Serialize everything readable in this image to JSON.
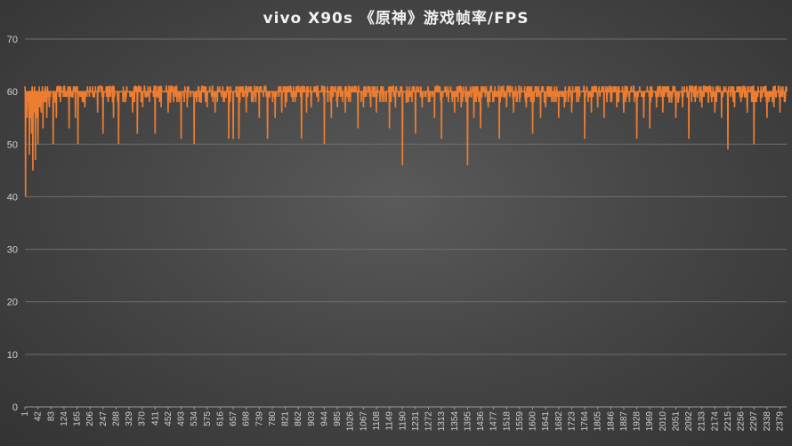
{
  "chart_data": {
    "type": "line",
    "title": "vivo X90s 《原神》游戏帧率/FPS",
    "xlabel": "",
    "ylabel": "",
    "ylim": [
      0,
      70
    ],
    "yticks": [
      0,
      10,
      20,
      30,
      40,
      50,
      60,
      70
    ],
    "x_range": [
      1,
      2400
    ],
    "xtick_labels": [
      "1",
      "42",
      "83",
      "124",
      "165",
      "206",
      "247",
      "288",
      "329",
      "370",
      "411",
      "452",
      "493",
      "534",
      "575",
      "616",
      "657",
      "698",
      "739",
      "780",
      "821",
      "862",
      "903",
      "944",
      "985",
      "1026",
      "1067",
      "1108",
      "1149",
      "1190",
      "1231",
      "1272",
      "1313",
      "1354",
      "1395",
      "1436",
      "1477",
      "1518",
      "1559",
      "1600",
      "1641",
      "1682",
      "1723",
      "1764",
      "1805",
      "1846",
      "1887",
      "1928",
      "1969",
      "2010",
      "2051",
      "2092",
      "2133",
      "2174",
      "2215",
      "2256",
      "2297",
      "2338",
      "2379"
    ],
    "grid": true,
    "line_color": "#ED7D31",
    "baseline_fps": 60,
    "series": [
      {
        "name": "",
        "dips": [
          [
            3,
            40
          ],
          [
            8,
            55
          ],
          [
            12,
            58
          ],
          [
            15,
            48
          ],
          [
            18,
            55
          ],
          [
            22,
            52
          ],
          [
            26,
            45
          ],
          [
            30,
            56
          ],
          [
            34,
            47
          ],
          [
            38,
            55
          ],
          [
            42,
            50
          ],
          [
            47,
            57
          ],
          [
            52,
            56
          ],
          [
            58,
            53
          ],
          [
            63,
            58
          ],
          [
            70,
            55
          ],
          [
            78,
            57
          ],
          [
            90,
            50
          ],
          [
            100,
            55
          ],
          [
            113,
            58
          ],
          [
            140,
            53
          ],
          [
            160,
            55
          ],
          [
            168,
            50
          ],
          [
            190,
            57
          ],
          [
            230,
            56
          ],
          [
            247,
            52
          ],
          [
            263,
            58
          ],
          [
            280,
            55
          ],
          [
            296,
            50
          ],
          [
            318,
            58
          ],
          [
            340,
            56
          ],
          [
            355,
            52
          ],
          [
            372,
            57
          ],
          [
            393,
            58
          ],
          [
            411,
            52
          ],
          [
            430,
            57
          ],
          [
            452,
            56
          ],
          [
            480,
            58
          ],
          [
            493,
            51
          ],
          [
            512,
            57
          ],
          [
            534,
            50
          ],
          [
            556,
            58
          ],
          [
            575,
            57
          ],
          [
            600,
            56
          ],
          [
            626,
            58
          ],
          [
            643,
            51
          ],
          [
            657,
            51
          ],
          [
            675,
            51
          ],
          [
            698,
            56
          ],
          [
            720,
            58
          ],
          [
            739,
            55
          ],
          [
            765,
            51
          ],
          [
            789,
            55
          ],
          [
            810,
            56
          ],
          [
            821,
            57
          ],
          [
            845,
            58
          ],
          [
            872,
            51
          ],
          [
            888,
            56
          ],
          [
            903,
            57
          ],
          [
            925,
            58
          ],
          [
            944,
            50
          ],
          [
            966,
            55
          ],
          [
            985,
            57
          ],
          [
            1010,
            56
          ],
          [
            1026,
            58
          ],
          [
            1050,
            53
          ],
          [
            1067,
            57
          ],
          [
            1090,
            57
          ],
          [
            1108,
            56
          ],
          [
            1132,
            58
          ],
          [
            1149,
            53
          ],
          [
            1168,
            57
          ],
          [
            1190,
            46
          ],
          [
            1209,
            58
          ],
          [
            1231,
            52
          ],
          [
            1252,
            57
          ],
          [
            1272,
            58
          ],
          [
            1291,
            55
          ],
          [
            1313,
            51
          ],
          [
            1335,
            58
          ],
          [
            1354,
            56
          ],
          [
            1375,
            57
          ],
          [
            1395,
            46
          ],
          [
            1415,
            55
          ],
          [
            1436,
            53
          ],
          [
            1460,
            57
          ],
          [
            1477,
            58
          ],
          [
            1495,
            51
          ],
          [
            1518,
            57
          ],
          [
            1540,
            56
          ],
          [
            1559,
            58
          ],
          [
            1580,
            57
          ],
          [
            1600,
            52
          ],
          [
            1625,
            55
          ],
          [
            1641,
            57
          ],
          [
            1660,
            58
          ],
          [
            1682,
            55
          ],
          [
            1700,
            57
          ],
          [
            1723,
            56
          ],
          [
            1745,
            58
          ],
          [
            1764,
            51
          ],
          [
            1785,
            56
          ],
          [
            1805,
            57
          ],
          [
            1825,
            55
          ],
          [
            1846,
            58
          ],
          [
            1865,
            57
          ],
          [
            1887,
            56
          ],
          [
            1905,
            58
          ],
          [
            1928,
            51
          ],
          [
            1950,
            55
          ],
          [
            1969,
            53
          ],
          [
            1990,
            57
          ],
          [
            2010,
            56
          ],
          [
            2030,
            58
          ],
          [
            2051,
            55
          ],
          [
            2072,
            57
          ],
          [
            2092,
            51
          ],
          [
            2112,
            58
          ],
          [
            2133,
            57
          ],
          [
            2154,
            58
          ],
          [
            2174,
            56
          ],
          [
            2195,
            55
          ],
          [
            2215,
            49
          ],
          [
            2236,
            57
          ],
          [
            2256,
            58
          ],
          [
            2276,
            56
          ],
          [
            2297,
            50
          ],
          [
            2318,
            58
          ],
          [
            2338,
            55
          ],
          [
            2360,
            57
          ],
          [
            2379,
            56
          ],
          [
            2395,
            58
          ]
        ]
      }
    ]
  }
}
